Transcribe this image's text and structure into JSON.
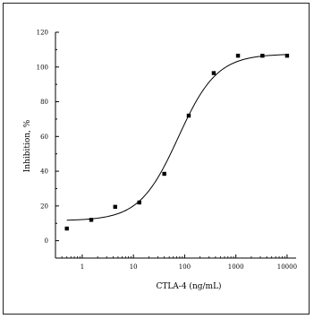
{
  "chart_data": {
    "type": "scatter",
    "xlabel": "CTLA-4 (ng/mL)",
    "ylabel": "Inhibition, %",
    "xscale": "log",
    "xlim": [
      0.3,
      15000
    ],
    "ylim": [
      -10,
      120
    ],
    "x_ticks": [
      1,
      10,
      100,
      1000,
      10000
    ],
    "x_tick_labels": [
      "1",
      "10",
      "100",
      "1000",
      "10000"
    ],
    "y_ticks": [
      0,
      20,
      40,
      60,
      80,
      100,
      120
    ],
    "y_tick_labels": [
      "0",
      "20",
      "40",
      "60",
      "80",
      "100",
      "120"
    ],
    "grid": false,
    "legend": "none",
    "series": [
      {
        "x": [
          0.5,
          1.5,
          4.4,
          13,
          40,
          120,
          370,
          1100,
          3300,
          10000
        ],
        "y": [
          7,
          12,
          19.5,
          22,
          38.5,
          72,
          96.5,
          106.5,
          106.5,
          106.5
        ]
      }
    ],
    "fit_curve": {
      "type": "four-parameter logistic",
      "bottom": 11.5,
      "top": 107.5,
      "ec50": 75,
      "hill": 1.15
    }
  }
}
